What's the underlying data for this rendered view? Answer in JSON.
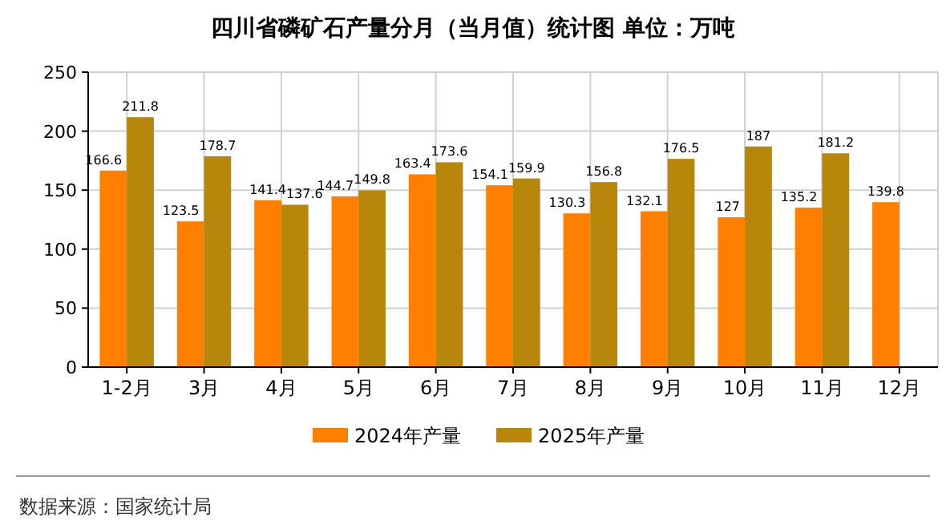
{
  "chart_data": {
    "type": "bar",
    "title": "四川省磷矿石产量分月（当月值）统计图 单位：万吨",
    "categories": [
      "1-2月",
      "3月",
      "4月",
      "5月",
      "6月",
      "7月",
      "8月",
      "9月",
      "10月",
      "11月",
      "12月"
    ],
    "series": [
      {
        "name": "2024年产量",
        "color": "#ff8000",
        "values": [
          166.6,
          123.5,
          141.4,
          144.7,
          163.4,
          154.1,
          130.3,
          132.1,
          127,
          135.2,
          139.8
        ]
      },
      {
        "name": "2025年产量",
        "color": "#b8860b",
        "values": [
          211.8,
          178.7,
          137.6,
          149.8,
          173.6,
          159.9,
          156.8,
          176.5,
          187,
          181.2,
          null
        ]
      }
    ],
    "ylim": [
      0,
      250
    ],
    "yticks": [
      0,
      50,
      100,
      150,
      200,
      250
    ],
    "grid": true,
    "legend": "bottom",
    "data_labels": true,
    "annotations": [
      "数据来源：国家统计局"
    ]
  }
}
